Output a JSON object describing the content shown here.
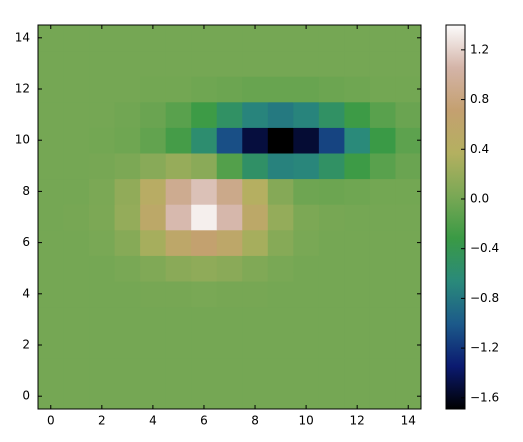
{
  "chart_data": {
    "type": "heatmap",
    "z": [
      [
        0,
        0,
        0,
        0,
        0,
        0,
        0,
        0,
        0,
        0,
        0,
        0,
        0,
        0,
        0
      ],
      [
        0,
        0,
        0,
        0,
        0,
        0,
        0,
        0,
        0,
        0,
        0,
        0,
        0,
        0,
        0
      ],
      [
        0,
        0,
        0,
        0,
        0,
        0,
        0,
        0,
        0,
        0,
        0,
        0,
        0,
        0,
        0
      ],
      [
        0,
        0,
        0,
        0,
        0,
        0,
        0,
        0,
        0,
        0,
        0,
        0,
        0,
        0,
        0
      ],
      [
        0,
        0,
        0,
        0,
        0.01,
        0.01,
        0.02,
        0.01,
        0.01,
        0,
        0,
        0,
        0,
        0,
        0
      ],
      [
        0,
        0,
        0,
        0.02,
        0.06,
        0.12,
        0.15,
        0.12,
        0.06,
        0.02,
        0,
        0,
        0,
        0,
        0
      ],
      [
        0,
        0,
        0.02,
        0.1,
        0.29,
        0.56,
        0.7,
        0.56,
        0.29,
        0.1,
        0.02,
        0,
        0,
        0,
        0
      ],
      [
        0,
        0.01,
        0.04,
        0.18,
        0.55,
        1.08,
        1.34,
        1.07,
        0.55,
        0.18,
        0.04,
        0.01,
        0,
        0,
        0
      ],
      [
        0,
        0,
        0.03,
        0.16,
        0.46,
        0.91,
        1.12,
        0.87,
        0.4,
        0.09,
        -0.04,
        -0.05,
        -0.03,
        -0.01,
        -0.01
      ],
      [
        0,
        0,
        0.01,
        0.04,
        0.11,
        0.19,
        0.12,
        -0.18,
        -0.53,
        -0.72,
        -0.69,
        -0.52,
        -0.3,
        -0.15,
        -0.06
      ],
      [
        0,
        0,
        -0.01,
        -0.03,
        -0.1,
        -0.26,
        -0.59,
        -1.06,
        -1.5,
        -1.69,
        -1.53,
        -1.12,
        -0.66,
        -0.32,
        -0.13
      ],
      [
        0,
        0,
        0,
        -0.02,
        -0.06,
        -0.15,
        -0.3,
        -0.52,
        -0.7,
        -0.78,
        -0.7,
        -0.52,
        -0.3,
        -0.15,
        -0.06
      ],
      [
        0,
        0,
        0,
        0,
        -0.01,
        -0.01,
        -0.03,
        -0.05,
        -0.07,
        -0.07,
        -0.07,
        -0.05,
        -0.03,
        -0.01,
        -0.01
      ],
      [
        0,
        0,
        0,
        0,
        0,
        0,
        0,
        0,
        0,
        0,
        0,
        0,
        0,
        0,
        0
      ],
      [
        0,
        0,
        0,
        0,
        0,
        0,
        0,
        0,
        0,
        0,
        0,
        0,
        0,
        0,
        0
      ]
    ],
    "xlim": [
      -0.5,
      14.5
    ],
    "ylim": [
      14.5,
      -0.5
    ],
    "xticks": [
      0,
      2,
      4,
      6,
      8,
      10,
      12,
      14
    ],
    "yticks": [
      0,
      2,
      4,
      6,
      8,
      10,
      12,
      14
    ],
    "clim": [
      -1.69,
      1.4
    ],
    "cticks": [
      {
        "value": -1.6,
        "label": "−1.6"
      },
      {
        "value": -1.2,
        "label": "−1.2"
      },
      {
        "value": -0.8,
        "label": "−0.8"
      },
      {
        "value": -0.4,
        "label": "−0.4"
      },
      {
        "value": 0,
        "label": "0.0"
      },
      0.4,
      0.8,
      1.2
    ],
    "colors": [
      "#000000",
      "#0b1a70",
      "#1c5a8a",
      "#2a8a7a",
      "#3a9a45",
      "#7aa855",
      "#b4b060",
      "#c4a070",
      "#d4b4a8",
      "#fcfcfc"
    ]
  }
}
